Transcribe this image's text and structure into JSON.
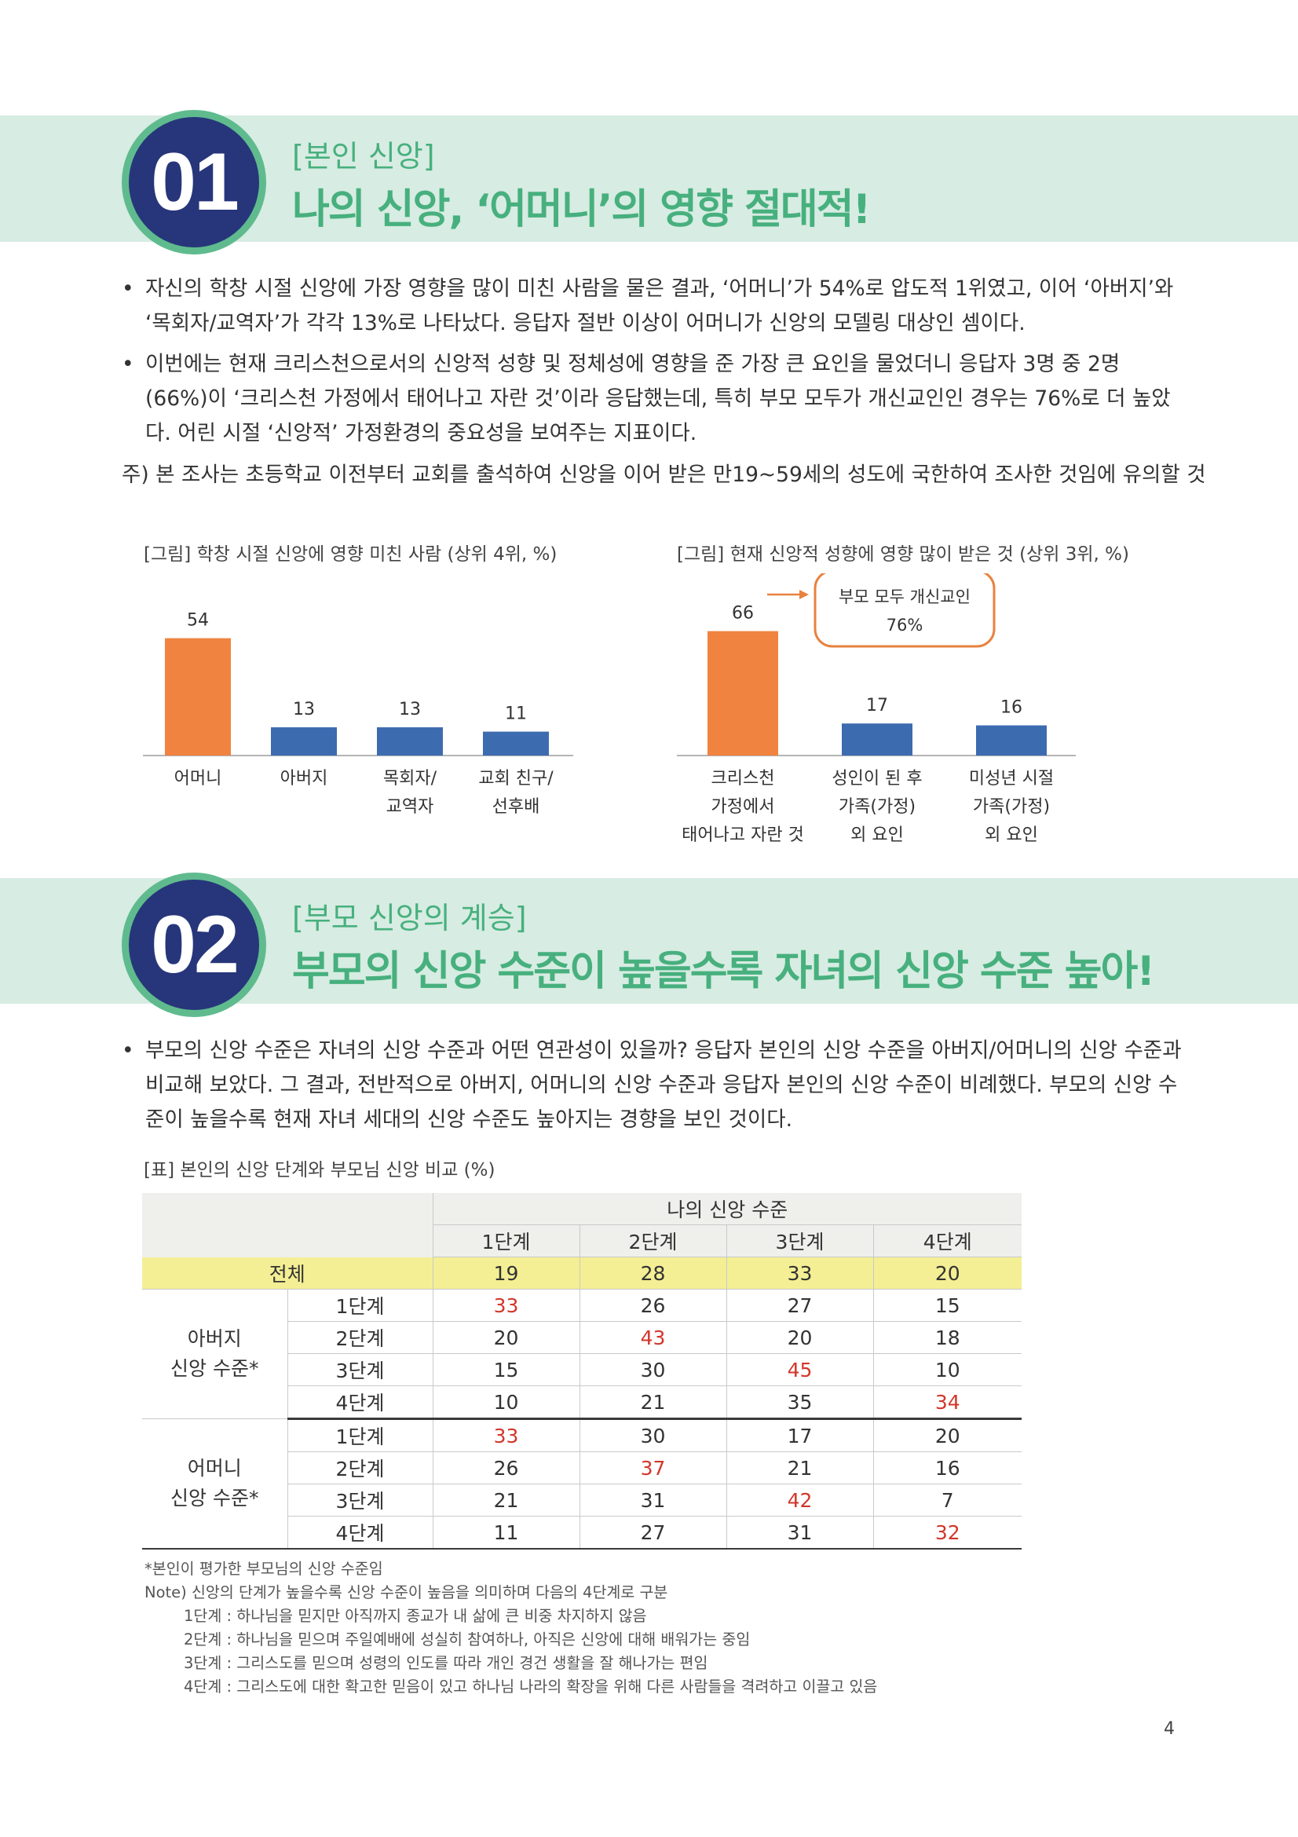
{
  "section1": {
    "number": "01",
    "kicker": "[본인 신앙]",
    "headline": "나의 신앙, ‘어머니’의 영향 절대적!",
    "bullets": [
      "자신의 학창 시절 신앙에 가장 영향을 많이 미친 사람을 물은 결과, ‘어머니’가 54%로 압도적 1위였고, 이어 ‘아버지’와 ‘목회자/교역자’가 각각 13%로 나타났다. 응답자 절반 이상이 어머니가 신앙의 모델링 대상인 셈이다.",
      "이번에는 현재 크리스천으로서의 신앙적 성향 및 정체성에 영향을 준 가장 큰 요인을 물었더니 응답자 3명 중 2명(66%)이 ‘크리스천 가정에서 태어나고 자란 것’이라 응답했는데, 특히 부모 모두가 개신교인인 경우는 76%로 더 높았다. 어린 시절 ‘신앙적’ 가정환경의 중요성을 보여주는 지표이다."
    ],
    "note": "주) 본 조사는 초등학교 이전부터 교회를 출석하여 신앙을 이어 받은 만19~59세의 성도에 국한하여 조사한 것임에 유의할 것"
  },
  "chart_data": [
    {
      "type": "bar",
      "title": "[그림] 학창 시절 신앙에 영향 미친 사람 (상위 4위, %)",
      "categories": [
        [
          "어머니"
        ],
        [
          "아버지"
        ],
        [
          "목회자/",
          "교역자"
        ],
        [
          "교회 친구/",
          "선후배"
        ]
      ],
      "values": [
        54,
        13,
        13,
        11
      ],
      "colors": [
        "#f0833f",
        "#3d6bb0",
        "#3d6bb0",
        "#3d6bb0"
      ],
      "ylim": [
        0,
        60
      ]
    },
    {
      "type": "bar",
      "title": "[그림] 현재 신앙적 성향에 영향 많이 받은 것 (상위 3위, %)",
      "categories": [
        [
          "크리스천",
          "가정에서",
          "태어나고 자란 것"
        ],
        [
          "성인이 된 후",
          "가족(가정)",
          "외 요인"
        ],
        [
          "미성년 시절",
          "가족(가정)",
          "외 요인"
        ]
      ],
      "values": [
        66,
        17,
        16
      ],
      "colors": [
        "#f0833f",
        "#3d6bb0",
        "#3d6bb0"
      ],
      "ylim": [
        0,
        70
      ],
      "callout": {
        "line1": "부모 모두 개신교인",
        "line2": "76%",
        "color": "#e8823f"
      }
    }
  ],
  "section2": {
    "number": "02",
    "kicker": "[부모 신앙의 계승]",
    "headline": "부모의 신앙 수준이 높을수록 자녀의 신앙 수준 높아!",
    "bullets": [
      "부모의 신앙 수준은 자녀의 신앙 수준과 어떤 연관성이 있을까? 응답자 본인의 신앙 수준을 아버지/어머니의 신앙 수준과 비교해 보았다. 그 결과, 전반적으로 아버지, 어머니의 신앙 수준과 응답자 본인의 신앙 수준이 비례했다. 부모의 신앙 수준이 높을수록 현재 자녀 세대의 신앙 수준도 높아지는 경향을 보인 것이다."
    ]
  },
  "table": {
    "caption": "[표] 본인의 신앙 단계와 부모님 신앙 비교 (%)",
    "group_header": "나의 신앙 수준",
    "columns": [
      "1단계",
      "2단계",
      "3단계",
      "4단계"
    ],
    "total_label": "전체",
    "total": [
      "19",
      "28",
      "33",
      "20"
    ],
    "father_label_1": "아버지",
    "father_label_2": "신앙 수준*",
    "father_rows": [
      {
        "stage": "1단계",
        "values": [
          "33",
          "26",
          "27",
          "15"
        ]
      },
      {
        "stage": "2단계",
        "values": [
          "20",
          "43",
          "20",
          "18"
        ]
      },
      {
        "stage": "3단계",
        "values": [
          "15",
          "30",
          "45",
          "10"
        ]
      },
      {
        "stage": "4단계",
        "values": [
          "10",
          "21",
          "35",
          "34"
        ]
      }
    ],
    "mother_label_1": "어머니",
    "mother_label_2": "신앙 수준*",
    "mother_rows": [
      {
        "stage": "1단계",
        "values": [
          "33",
          "30",
          "17",
          "20"
        ]
      },
      {
        "stage": "2단계",
        "values": [
          "26",
          "37",
          "21",
          "16"
        ]
      },
      {
        "stage": "3단계",
        "values": [
          "21",
          "31",
          "42",
          "7"
        ]
      },
      {
        "stage": "4단계",
        "values": [
          "11",
          "27",
          "31",
          "32"
        ]
      }
    ],
    "highlight_color": "#d2372b"
  },
  "footnotes": {
    "star": "*본인이 평가한 부모님의 신앙 수준임",
    "note": "Note) 신앙의 단계가 높을수록 신앙 수준이 높음을 의미하며 다음의 4단계로 구분",
    "stages": [
      "1단계 : 하나님을 믿지만 아직까지 종교가 내 삶에 큰 비중 차지하지 않음",
      "2단계 : 하나님을 믿으며 주일예배에 성실히 참여하나, 아직은 신앙에 대해 배워가는 중임",
      "3단계 : 그리스도를 믿으며 성령의 인도를 따라 개인 경건 생활을 잘 해나가는 편임",
      "4단계 : 그리스도에 대한 확고한 믿음이 있고 하나님 나라의 확장을 위해 다른 사람들을 격려하고 이끌고 있음"
    ]
  },
  "page_number": "4"
}
